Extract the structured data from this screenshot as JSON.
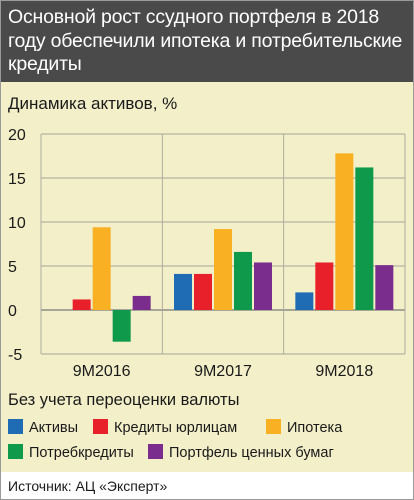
{
  "header": {
    "title": "Основной рост ссудного портфеля в 2018 году обеспечили ипотека и потребительские кредиты"
  },
  "chart_data": {
    "type": "bar",
    "title": "Динамика активов, %",
    "xlabel": "",
    "ylabel": "",
    "categories": [
      "9M2016",
      "9M2017",
      "9M2018"
    ],
    "series": [
      {
        "name": "Активы",
        "color": "#1f6cb4",
        "values": [
          0,
          4.1,
          2.0
        ]
      },
      {
        "name": "Кредиты юрлицам",
        "color": "#e8202a",
        "values": [
          1.2,
          4.1,
          5.4
        ]
      },
      {
        "name": "Ипотека",
        "color": "#f9b123",
        "values": [
          9.4,
          9.2,
          17.8
        ]
      },
      {
        "name": "Потребкредиты",
        "color": "#0f9a4b",
        "values": [
          -3.6,
          6.6,
          16.2
        ]
      },
      {
        "name": "Портфель ценных бумаг",
        "color": "#7b2d8e",
        "values": [
          1.6,
          5.4,
          5.1
        ]
      }
    ],
    "y_ticks": [
      "20",
      "15",
      "10",
      "5",
      "0",
      "-5"
    ],
    "ylim": [
      -5,
      20
    ],
    "grid": true,
    "legend_position": "bottom",
    "note": "Без учета переоценки валюты"
  },
  "source": "Источник: АЦ «Эксперт»"
}
